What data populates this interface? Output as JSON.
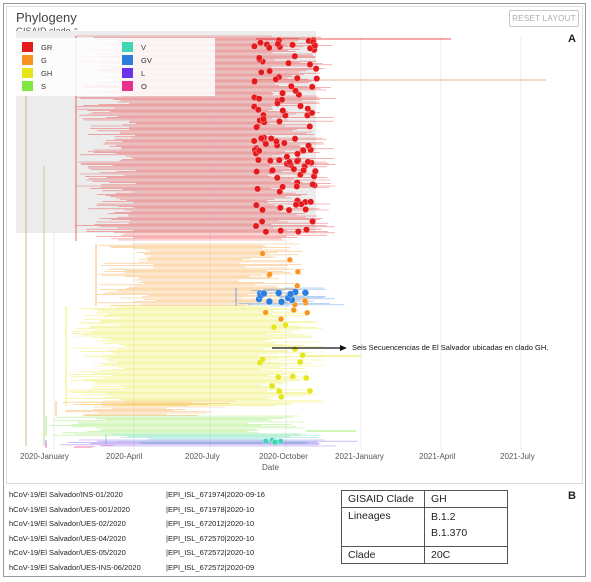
{
  "panel_a": {
    "title": "Phylogeny",
    "color_by": "GISAID clade",
    "color_by_caret": "⌃",
    "reset_button": "RESET LAYOUT",
    "label": "A",
    "legend": [
      {
        "label": "GR",
        "color": "#e41a1c"
      },
      {
        "label": "G",
        "color": "#f7931e"
      },
      {
        "label": "GH",
        "color": "#e5e51a"
      },
      {
        "label": "S",
        "color": "#80e640"
      },
      {
        "label": "V",
        "color": "#3fd6b5"
      },
      {
        "label": "GV",
        "color": "#2a7fde"
      },
      {
        "label": "L",
        "color": "#6a35e8"
      },
      {
        "label": "O",
        "color": "#e8308f"
      }
    ],
    "x_axis": {
      "ticks": [
        "2020-January",
        "2020-April",
        "2020-July",
        "2020-October",
        "2021-January",
        "2021-April",
        "2021-July"
      ],
      "title": "Date"
    },
    "annotation": "Seis Secuencencias de El Salvador ubicadas en clado GH."
  },
  "panel_b": {
    "label": "B",
    "sequences": [
      {
        "name": "hCoV-19/El Salvador/INS-01/2020",
        "id": "|EPI_ISL_671974|2020-09-16"
      },
      {
        "name": "hCoV-19/El Salvador/UES-001/2020",
        "id": "|EPI_ISL_671978|2020-10"
      },
      {
        "name": "hCoV-19/El Salvador/UES-02/2020",
        "id": "|EPI_ISL_672012|2020-10"
      },
      {
        "name": "hCoV-19/El Salvador/UES-04/2020",
        "id": "|EPI_ISL_672570|2020-10"
      },
      {
        "name": "hCoV-19/El Salvador/UES-05/2020",
        "id": "|EPI_ISL_672572|2020-10"
      },
      {
        "name": "hCoV-19/El Salvador/UES-INS-06/2020",
        "id": "|EPI_ISL_672572|2020-09"
      }
    ],
    "clade_table": {
      "gisaid_clade_label": "GISAID Clade",
      "gisaid_clade_value": "GH",
      "lineages_label": "Lineages",
      "lineages_value_1": "B.1.2",
      "lineages_value_2": "B.1.370",
      "clade_label": "Clade",
      "clade_value": "20C"
    }
  }
}
